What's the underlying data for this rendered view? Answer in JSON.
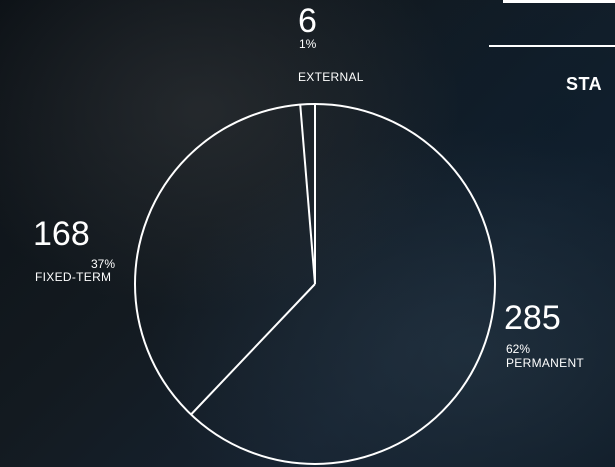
{
  "header": {
    "title_partial": "STA"
  },
  "chart_data": {
    "type": "pie",
    "slices": [
      {
        "label": "PERMANENT",
        "value": 285,
        "percent": "62%"
      },
      {
        "label": "FIXED-TERM",
        "value": 168,
        "percent": "37%"
      },
      {
        "label": "EXTERNAL",
        "value": 6,
        "percent": "1%"
      }
    ],
    "start": "top",
    "direction": "clockwise",
    "colors": {
      "stroke": "#ffffff",
      "text": "#ffffff"
    }
  }
}
